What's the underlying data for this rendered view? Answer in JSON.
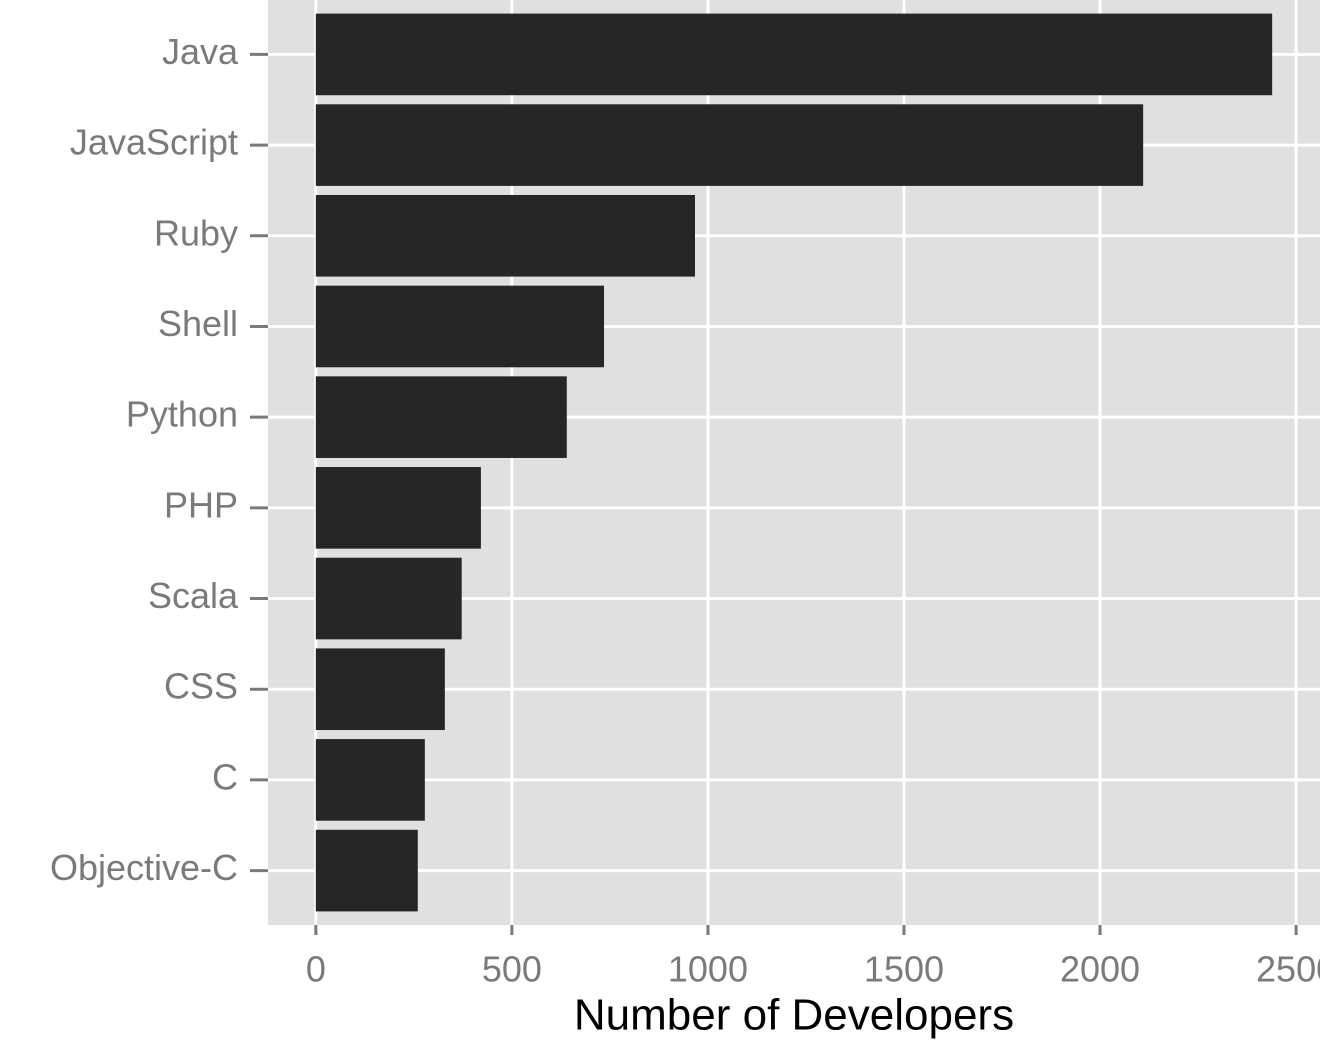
{
  "chart_data": {
    "type": "bar",
    "orientation": "horizontal",
    "x_label": "Number of Developers",
    "categories": [
      "Java",
      "JavaScript",
      "Ruby",
      "Shell",
      "Python",
      "PHP",
      "Scala",
      "CSS",
      "C",
      "Objective-C"
    ],
    "values": [
      2439,
      2110,
      967,
      735,
      640,
      421,
      372,
      329,
      278,
      260
    ],
    "color": "#262626",
    "xlim": [
      -122,
      2561
    ],
    "xticks": [
      0,
      500,
      1000,
      1500,
      2000,
      2500
    ],
    "grid": true
  }
}
